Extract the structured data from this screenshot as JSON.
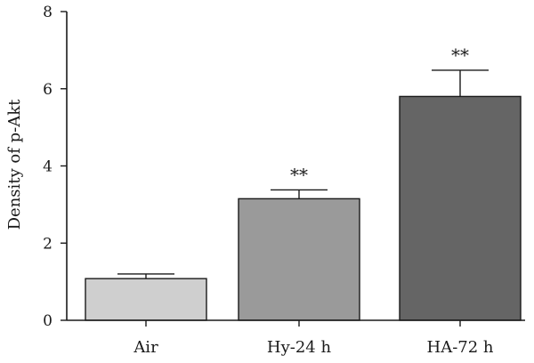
{
  "chart_data": {
    "type": "bar",
    "title": "",
    "xlabel": "",
    "ylabel": "Density of p-Akt",
    "ylim": [
      0,
      8
    ],
    "yticks": [
      0,
      2,
      4,
      6,
      8
    ],
    "grid": false,
    "categories": [
      "Air",
      "Hy-24 h",
      "HA-72 h"
    ],
    "values": [
      1.08,
      3.15,
      5.8
    ],
    "error_upper": [
      1.2,
      3.38,
      6.48
    ],
    "annotations": [
      "",
      "**",
      "**"
    ],
    "bar_colors": [
      "#cfcfcf",
      "#9a9a9a",
      "#656565"
    ]
  }
}
